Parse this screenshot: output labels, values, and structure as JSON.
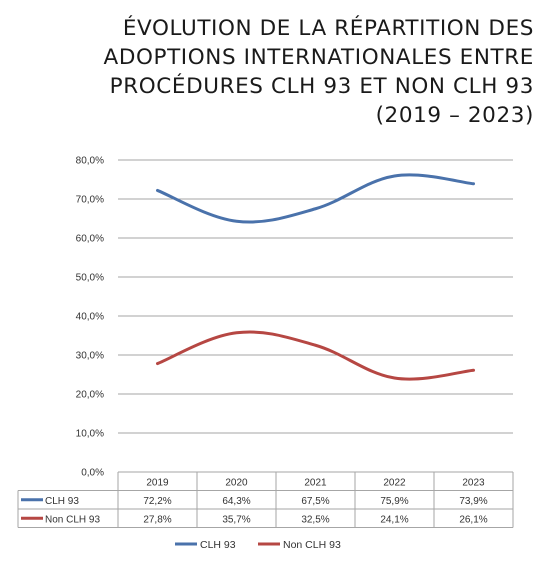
{
  "title_lines": [
    "ÉVOLUTION DE LA RÉPARTITION DES",
    "ADOPTIONS INTERNATIONALES ENTRE",
    "PROCÉDURES CLH 93 ET NON CLH 93",
    "(2019 – 2023)"
  ],
  "chart_data": {
    "type": "line",
    "title": "ÉVOLUTION DE LA RÉPARTITION DES ADOPTIONS INTERNATIONALES ENTRE PROCÉDURES CLH 93 ET NON CLH 93 (2019 – 2023)",
    "categories": [
      "2019",
      "2020",
      "2021",
      "2022",
      "2023"
    ],
    "series": [
      {
        "name": "CLH 93",
        "values": [
          72.2,
          64.3,
          67.5,
          75.9,
          73.9
        ],
        "labels": [
          "72,2%",
          "64,3%",
          "67,5%",
          "75,9%",
          "73,9%"
        ],
        "color": "#4a72ab"
      },
      {
        "name": "Non CLH 93",
        "values": [
          27.8,
          35.7,
          32.5,
          24.1,
          26.1
        ],
        "labels": [
          "27,8%",
          "35,7%",
          "32,5%",
          "24,1%",
          "26,1%"
        ],
        "color": "#b64743"
      }
    ],
    "ylim": [
      0,
      80
    ],
    "yticks": [
      0,
      10,
      20,
      30,
      40,
      50,
      60,
      70,
      80
    ],
    "ytick_labels": [
      "0,0%",
      "10,0%",
      "20,0%",
      "30,0%",
      "40,0%",
      "50,0%",
      "60,0%",
      "70,0%",
      "80,0%"
    ],
    "grid": true,
    "data_table": true,
    "legend_position": "bottom"
  }
}
